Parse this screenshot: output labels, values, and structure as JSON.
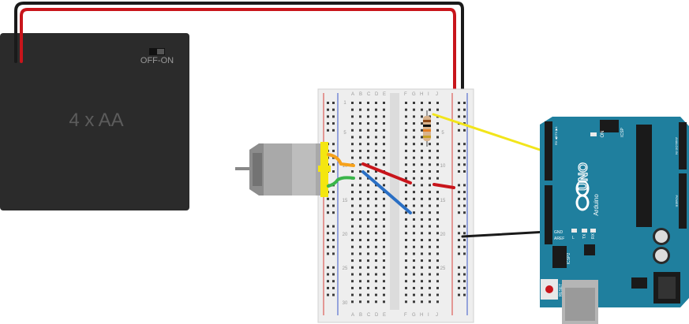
{
  "battery": {
    "label": "4 x AA",
    "switch_label": "OFF-ON"
  },
  "breadboard": {
    "column_letters_left": [
      "A",
      "B",
      "C",
      "D",
      "E"
    ],
    "column_letters_right": [
      "F",
      "G",
      "H",
      "I",
      "J"
    ],
    "row_numbers": [
      "1",
      "5",
      "10",
      "15",
      "20",
      "25",
      "30"
    ]
  },
  "arduino": {
    "model": "UNO",
    "brand": "Arduino",
    "on_label": "ON",
    "icsp_label": "ICSP",
    "icsp2_label": "ICSP2",
    "reset_label": "RESET",
    "aref_label": "AREF",
    "gnd_label": "GND",
    "tx_label": "TX",
    "rx_label": "RX",
    "l_label": "L",
    "digital_label": "DIGITAL (PWM~)",
    "analog_label": "ANALOG IN",
    "power_label": "POWER",
    "tx_pin": "TX ▶1",
    "rx_pin": "RX ◀0"
  },
  "colors": {
    "battery_body": "#2b2b2b",
    "arduino_body": "#1f7f9e",
    "wire_red": "#c8151b",
    "wire_black": "#1a1a1a",
    "wire_yellow": "#f2e51b",
    "wire_green": "#3ab54a",
    "wire_blue": "#2a6fc4",
    "wire_orange": "#f7a21b",
    "motor_yellow": "#f4e610"
  }
}
